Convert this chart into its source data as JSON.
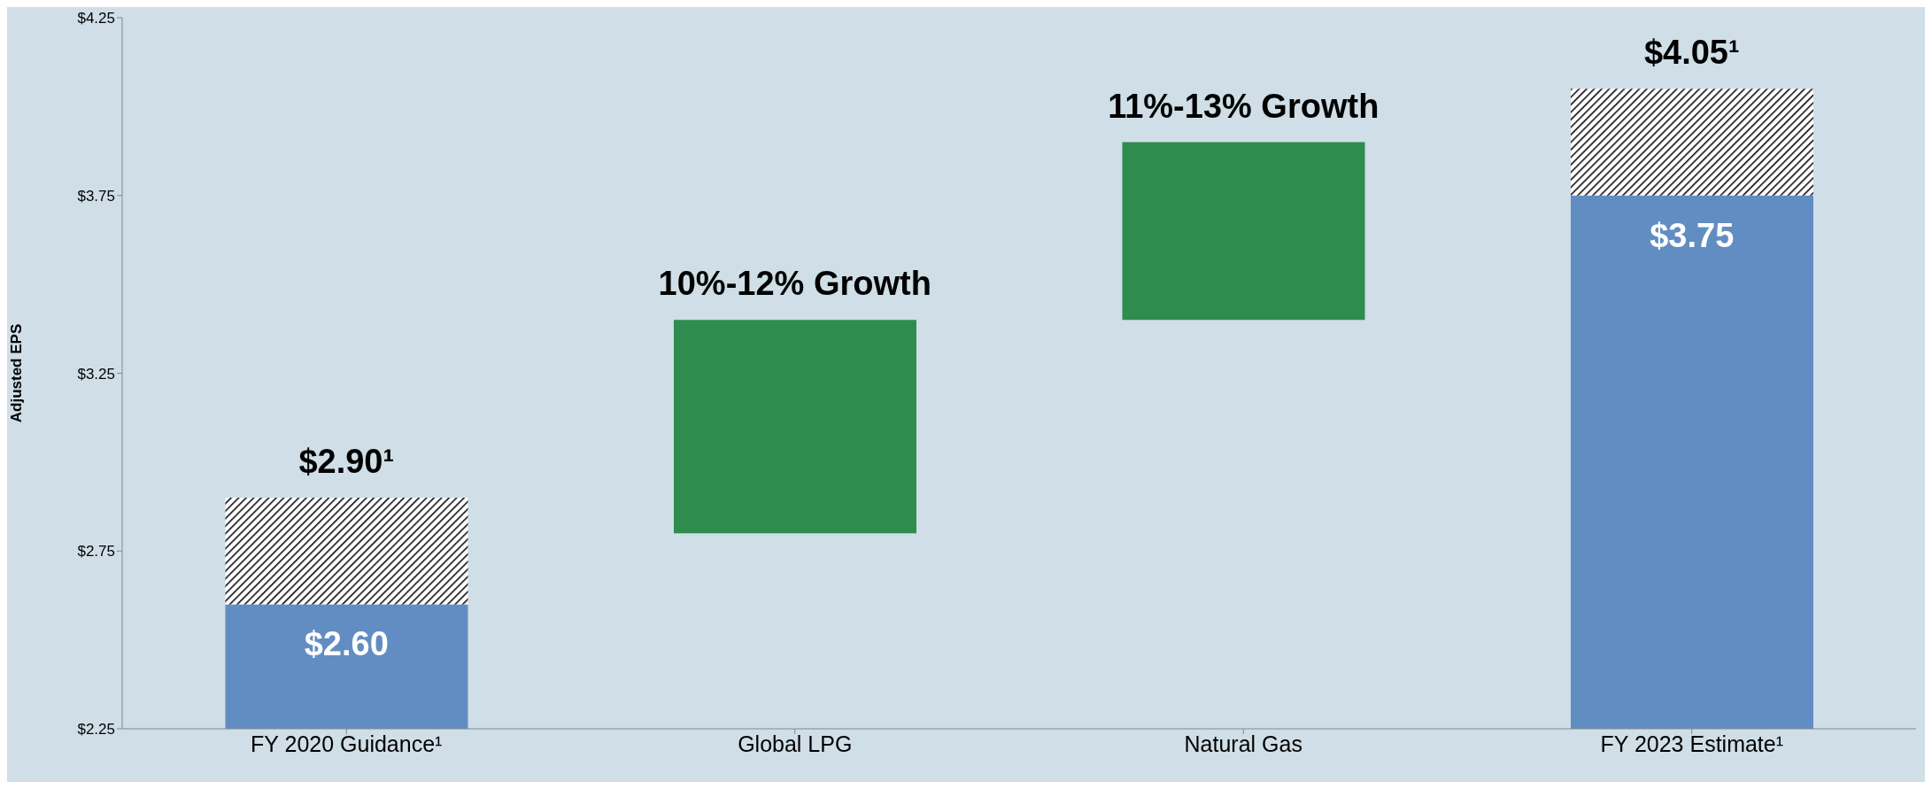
{
  "chart_data": {
    "type": "bar",
    "stacked": true,
    "ylabel": "Adjusted EPS",
    "categories": [
      "FY 2020 Guidance¹",
      "Global LPG",
      "Natural Gas",
      "FY 2023 Estimate¹"
    ],
    "series": [
      {
        "color": "#628dc2",
        "values": [
          2.6,
          null,
          null,
          3.75
        ],
        "value_labels": [
          "$2.60",
          null,
          null,
          "$3.75"
        ]
      },
      {
        "color": "#000000",
        "base": [
          2.6,
          null,
          null,
          3.75
        ],
        "values": [
          0.3,
          null,
          null,
          0.3
        ]
      },
      {
        "color": "#2f8c4f",
        "base": [
          null,
          2.8,
          3.4,
          null
        ],
        "values": [
          null,
          0.6,
          0.5,
          null
        ]
      }
    ],
    "totals": [
      "$2.90¹",
      null,
      null,
      "$4.05¹"
    ],
    "annotations": [
      "10%-12% Growth",
      "11%-13% Growth"
    ],
    "ylim": [
      2.25,
      4.25
    ],
    "yticks": [
      {
        "value": 2.25,
        "label": "$2.25"
      },
      {
        "value": 2.75,
        "label": "$2.75"
      },
      {
        "value": 3.25,
        "label": "$3.25"
      },
      {
        "value": 3.75,
        "label": "$3.75"
      },
      {
        "value": 4.25,
        "label": "$4.25"
      }
    ],
    "grid": false,
    "legend": false
  }
}
